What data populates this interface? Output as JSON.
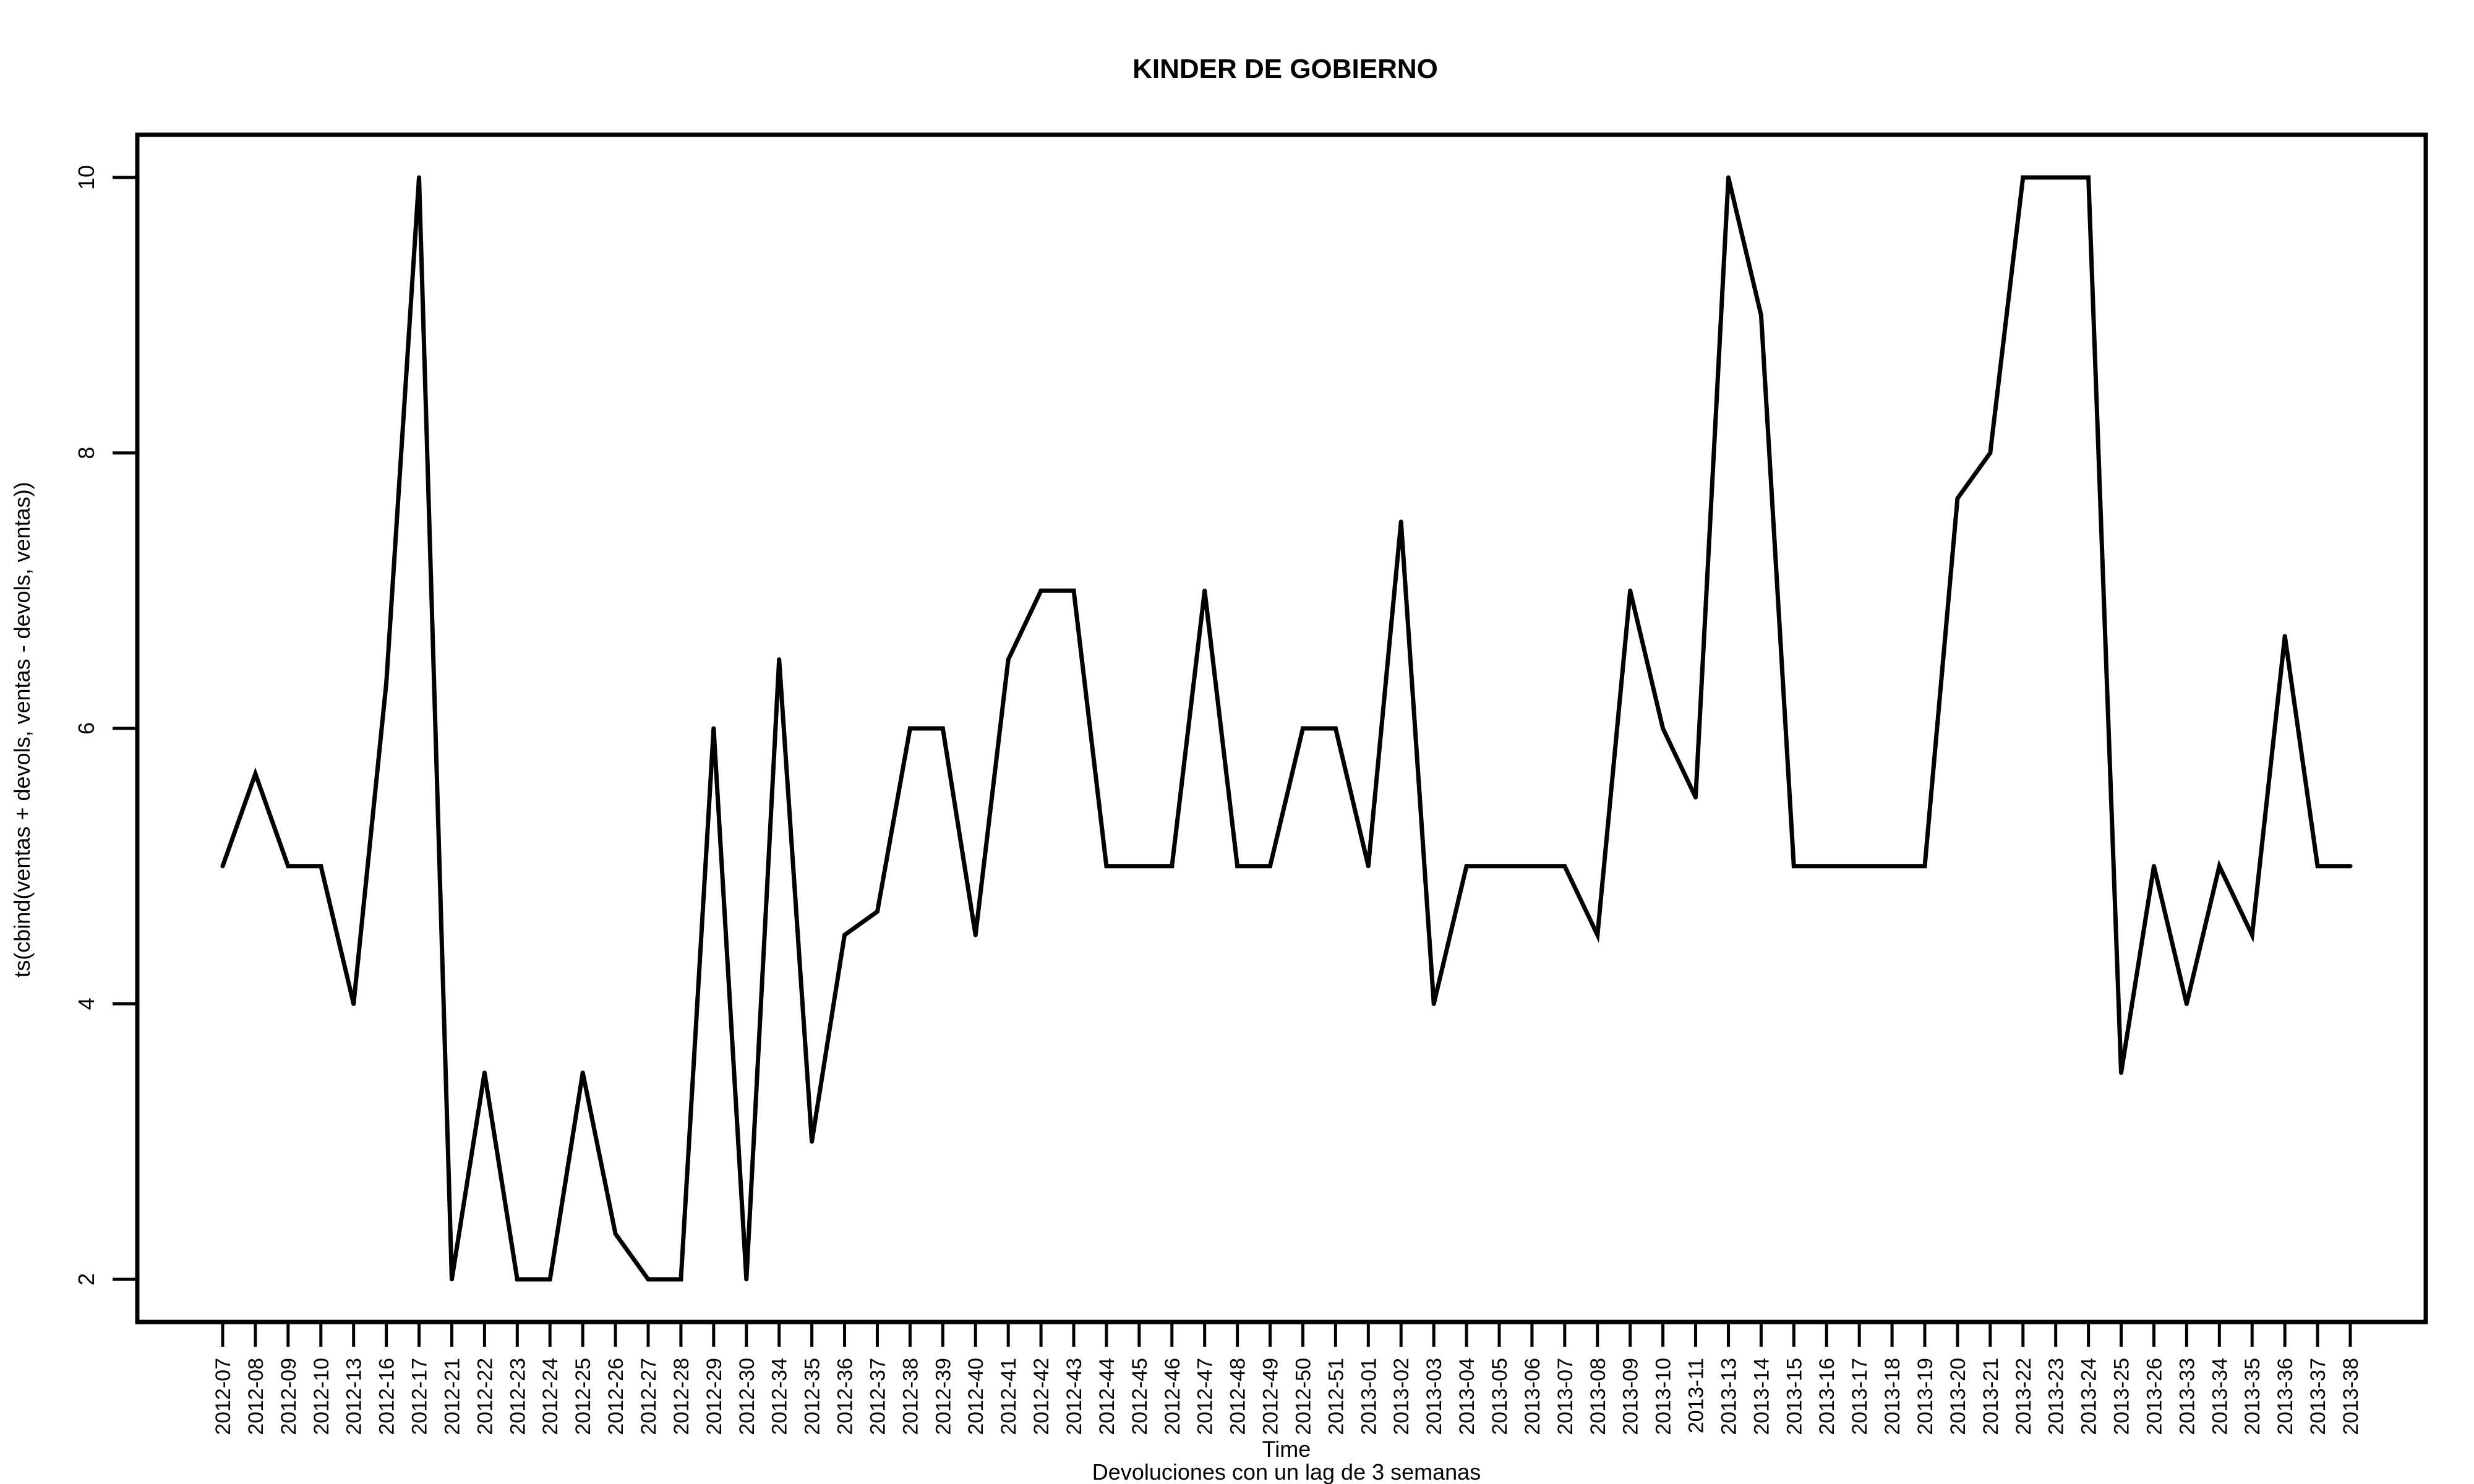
{
  "chart_data": {
    "type": "line",
    "title": "KINDER DE GOBIERNO",
    "xlabel": "Time",
    "subtitle": "Devoluciones con un lag de 3 semanas",
    "ylabel": "ts(cbind(ventas + devols, ventas - devols, ventas))",
    "ylim": [
      1.69,
      10.31
    ],
    "yticks": [
      2,
      4,
      6,
      8,
      10
    ],
    "grid": false,
    "line_color": "#000000",
    "categories": [
      "2012-07",
      "2012-08",
      "2012-09",
      "2012-10",
      "2012-13",
      "2012-16",
      "2012-17",
      "2012-21",
      "2012-22",
      "2012-23",
      "2012-24",
      "2012-25",
      "2012-26",
      "2012-27",
      "2012-28",
      "2012-29",
      "2012-30",
      "2012-34",
      "2012-35",
      "2012-36",
      "2012-37",
      "2012-38",
      "2012-39",
      "2012-40",
      "2012-41",
      "2012-42",
      "2012-43",
      "2012-44",
      "2012-45",
      "2012-46",
      "2012-47",
      "2012-48",
      "2012-49",
      "2012-50",
      "2012-51",
      "2013-01",
      "2013-02",
      "2013-03",
      "2013-04",
      "2013-05",
      "2013-06",
      "2013-07",
      "2013-08",
      "2013-09",
      "2013-10",
      "2013-11",
      "2013-13",
      "2013-14",
      "2013-15",
      "2013-16",
      "2013-17",
      "2013-18",
      "2013-19",
      "2013-20",
      "2013-21",
      "2013-22",
      "2013-23",
      "2013-24",
      "2013-25",
      "2013-26",
      "2013-33",
      "2013-34",
      "2013-35",
      "2013-36",
      "2013-37",
      "2013-38"
    ],
    "values": [
      5,
      5.67,
      5,
      5,
      4,
      6.33,
      10,
      2,
      3.5,
      2,
      2,
      3.5,
      2.33,
      2,
      2,
      6,
      2,
      6.5,
      3,
      4.5,
      4.67,
      6,
      6,
      4.5,
      6.5,
      7,
      7,
      5,
      5,
      5,
      7,
      5,
      5,
      6,
      6,
      5,
      7.5,
      4,
      5,
      5,
      5,
      5,
      4.5,
      7,
      6,
      5.5,
      10,
      9,
      5,
      5,
      5,
      5,
      5,
      7.67,
      8,
      10,
      10,
      10,
      3.5,
      5,
      4,
      5,
      4.5,
      6.67,
      5,
      5
    ]
  }
}
